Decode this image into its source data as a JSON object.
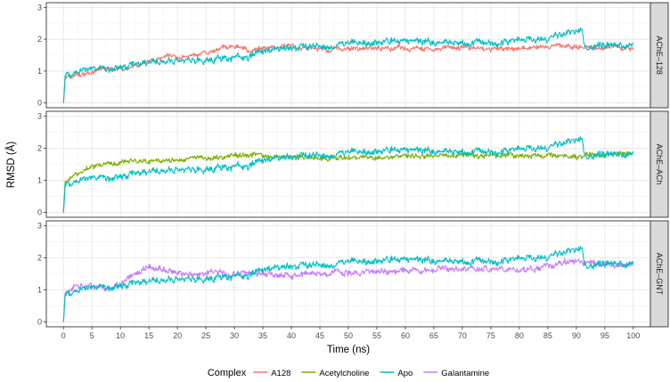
{
  "chart_data": {
    "type": "line",
    "xlabel": "Time (ns)",
    "ylabel": "RMSD (Å)",
    "xlim": [
      -3,
      103
    ],
    "ylim": [
      -0.15,
      3.15
    ],
    "x_ticks": [
      "0",
      "5",
      "10",
      "15",
      "20",
      "25",
      "30",
      "35",
      "40",
      "45",
      "50",
      "55",
      "60",
      "65",
      "70",
      "75",
      "80",
      "85",
      "90",
      "95",
      "100"
    ],
    "y_ticks": [
      "0",
      "1",
      "2",
      "3"
    ],
    "legend": {
      "title": "Complex",
      "position": "bottom",
      "entries": [
        {
          "name": "A128",
          "color": "#F8766D"
        },
        {
          "name": "Acetylcholine",
          "color": "#7CAE00"
        },
        {
          "name": "Apo",
          "color": "#00BFC4"
        },
        {
          "name": "Galantamine",
          "color": "#C77CFF"
        }
      ]
    },
    "anchor_x": [
      0,
      0.3,
      1,
      2,
      4,
      5,
      8,
      10,
      12,
      15,
      18,
      20,
      25,
      28,
      30,
      33,
      35,
      40,
      45,
      50,
      55,
      60,
      65,
      70,
      75,
      80,
      85,
      88,
      90,
      91,
      91.5,
      92,
      95,
      100
    ],
    "series_defs": {
      "Apo": {
        "color": "#00BFC4",
        "noise": 0.1,
        "anchor_y": [
          0.0,
          0.85,
          0.9,
          0.95,
          1.05,
          1.1,
          1.05,
          1.15,
          1.2,
          1.3,
          1.3,
          1.35,
          1.35,
          1.4,
          1.4,
          1.45,
          1.65,
          1.75,
          1.8,
          1.85,
          1.85,
          1.95,
          1.95,
          1.9,
          1.9,
          1.95,
          2.0,
          2.1,
          2.2,
          2.3,
          1.8,
          1.75,
          1.8,
          1.8
        ]
      },
      "A128": {
        "color": "#F8766D",
        "noise": 0.07,
        "anchor_y": [
          0.0,
          0.75,
          0.8,
          0.85,
          0.95,
          1.0,
          1.05,
          1.1,
          1.15,
          1.3,
          1.4,
          1.45,
          1.55,
          1.75,
          1.75,
          1.65,
          1.75,
          1.75,
          1.7,
          1.7,
          1.7,
          1.7,
          1.7,
          1.75,
          1.7,
          1.7,
          1.75,
          1.8,
          1.75,
          1.75,
          1.75,
          1.75,
          1.75,
          1.7
        ]
      },
      "Acetylcholine": {
        "color": "#7CAE00",
        "noise": 0.07,
        "anchor_y": [
          0.0,
          0.9,
          1.05,
          1.2,
          1.35,
          1.4,
          1.5,
          1.55,
          1.6,
          1.6,
          1.62,
          1.65,
          1.7,
          1.75,
          1.75,
          1.8,
          1.75,
          1.75,
          1.7,
          1.7,
          1.72,
          1.75,
          1.75,
          1.78,
          1.75,
          1.78,
          1.8,
          1.75,
          1.7,
          1.75,
          1.75,
          1.75,
          1.8,
          1.8
        ]
      },
      "Galantamine": {
        "color": "#C77CFF",
        "noise": 0.09,
        "anchor_y": [
          0.0,
          0.9,
          1.0,
          1.05,
          1.1,
          1.1,
          1.05,
          1.15,
          1.4,
          1.7,
          1.6,
          1.5,
          1.55,
          1.5,
          1.5,
          1.45,
          1.5,
          1.45,
          1.55,
          1.55,
          1.6,
          1.6,
          1.65,
          1.65,
          1.65,
          1.65,
          1.7,
          1.85,
          1.9,
          1.85,
          1.85,
          1.85,
          1.8,
          1.75
        ]
      }
    },
    "facets": [
      {
        "label": "AChE–128",
        "series": [
          "A128",
          "Apo"
        ]
      },
      {
        "label": "AChE–ACh",
        "series": [
          "Acetylcholine",
          "Apo"
        ]
      },
      {
        "label": "AChE–GNT",
        "series": [
          "Galantamine",
          "Apo"
        ]
      }
    ]
  }
}
